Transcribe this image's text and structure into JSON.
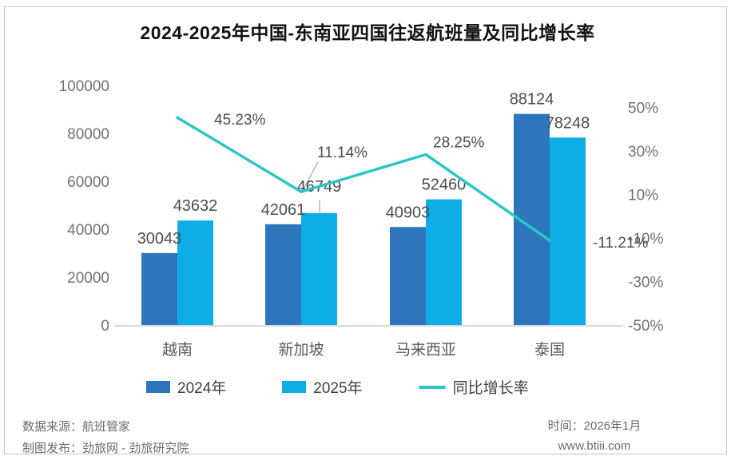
{
  "title": "2024-2025年中国-东南亚四国往返航班量及同比增长率",
  "chart_data": {
    "type": "combo",
    "categories": [
      "越南",
      "新加坡",
      "马来西亚",
      "泰国"
    ],
    "series": [
      {
        "name": "2024年",
        "type": "bar",
        "color": "#2d76bc",
        "values": [
          30043,
          42061,
          40903,
          88124
        ]
      },
      {
        "name": "2025年",
        "type": "bar",
        "color": "#0fade8",
        "values": [
          43632,
          46749,
          52460,
          78248
        ]
      },
      {
        "name": "同比增长率",
        "type": "line",
        "color": "#2cc6c4",
        "values": [
          45.23,
          11.14,
          28.25,
          -11.21
        ],
        "labels": [
          "45.23%",
          "11.14%",
          "28.25%",
          "-11.21%"
        ]
      }
    ],
    "left_axis": {
      "min": 0,
      "max": 100000,
      "tick_step": 20000,
      "tick_labels": [
        "0",
        "20000",
        "40000",
        "60000",
        "80000",
        "100000"
      ]
    },
    "right_axis": {
      "min": -50,
      "max": 50,
      "tick_step": 20,
      "tick_labels": [
        "-50%",
        "-30%",
        "-10%",
        "10%",
        "30%",
        "50%"
      ]
    },
    "grid": false,
    "legend_position": "bottom",
    "colors": {
      "bar_2024": "#2d76bc",
      "bar_2025": "#0fade8",
      "growth_line": "#2cc6c4",
      "axis_text": "#707070",
      "label_text": "#4c4c4c"
    }
  },
  "footer": {
    "source": "数据来源：航班管家",
    "publisher": "制图发布：劲旅网 - 劲旅研究院",
    "time": "时间：2026年1月",
    "website": "www.btiii.com"
  }
}
